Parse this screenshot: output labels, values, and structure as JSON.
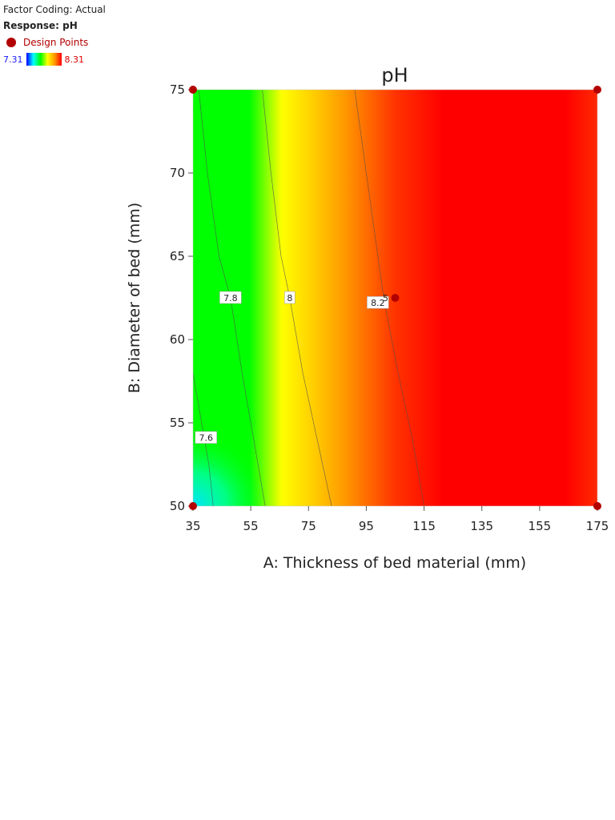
{
  "header": {
    "factor_coding": "Factor Coding: Actual",
    "response": "Response: pH",
    "design_points_label": "Design Points",
    "scale_min": "7.31",
    "scale_max": "8.31"
  },
  "colors": {
    "low": "#0000ff",
    "mid_low": "#00ff00",
    "mid": "#ffff00",
    "high": "#ff0000",
    "design_point": "#b30000"
  },
  "chart_data": {
    "type": "contour",
    "title": "pH",
    "xlabel": "A: Thickness of bed material (mm)",
    "ylabel": "B: Diameter of bed (mm)",
    "xlim": [
      35,
      175
    ],
    "ylim": [
      50,
      75
    ],
    "x_ticks": [
      35,
      55,
      75,
      95,
      115,
      135,
      155,
      175
    ],
    "y_ticks": [
      50,
      55,
      60,
      65,
      70,
      75
    ],
    "color_range": [
      7.31,
      8.31
    ],
    "contours": [
      {
        "level": 7.6,
        "label": "7.6",
        "label_at": [
          39.5,
          54.1
        ],
        "points": [
          [
            35,
            58
          ],
          [
            38,
            55
          ],
          [
            40.5,
            52.5
          ],
          [
            42,
            50
          ]
        ]
      },
      {
        "level": 7.8,
        "label": "7.8",
        "label_at": [
          48,
          62.5
        ],
        "points": [
          [
            37,
            75
          ],
          [
            40,
            70
          ],
          [
            44,
            65
          ],
          [
            48,
            62.5
          ],
          [
            52,
            58
          ],
          [
            56,
            54
          ],
          [
            60,
            50
          ]
        ]
      },
      {
        "level": 8.0,
        "label": "8",
        "label_at": [
          68.5,
          62.5
        ],
        "points": [
          [
            59,
            75
          ],
          [
            62,
            70
          ],
          [
            65.5,
            65
          ],
          [
            68.5,
            62.5
          ],
          [
            73,
            58
          ],
          [
            78,
            54
          ],
          [
            83,
            50
          ]
        ]
      },
      {
        "level": 8.2,
        "label": "8.2",
        "label_at": [
          99,
          62.2
        ],
        "points": [
          [
            91,
            75
          ],
          [
            95,
            70
          ],
          [
            99,
            65
          ],
          [
            101,
            62.5
          ],
          [
            106,
            58
          ],
          [
            111,
            54
          ],
          [
            115,
            50
          ]
        ]
      }
    ],
    "design_points": [
      {
        "x": 35,
        "y": 50
      },
      {
        "x": 35,
        "y": 75
      },
      {
        "x": 175,
        "y": 50
      },
      {
        "x": 175,
        "y": 75
      },
      {
        "x": 105,
        "y": 62.5
      }
    ],
    "center_point_label": "5"
  }
}
